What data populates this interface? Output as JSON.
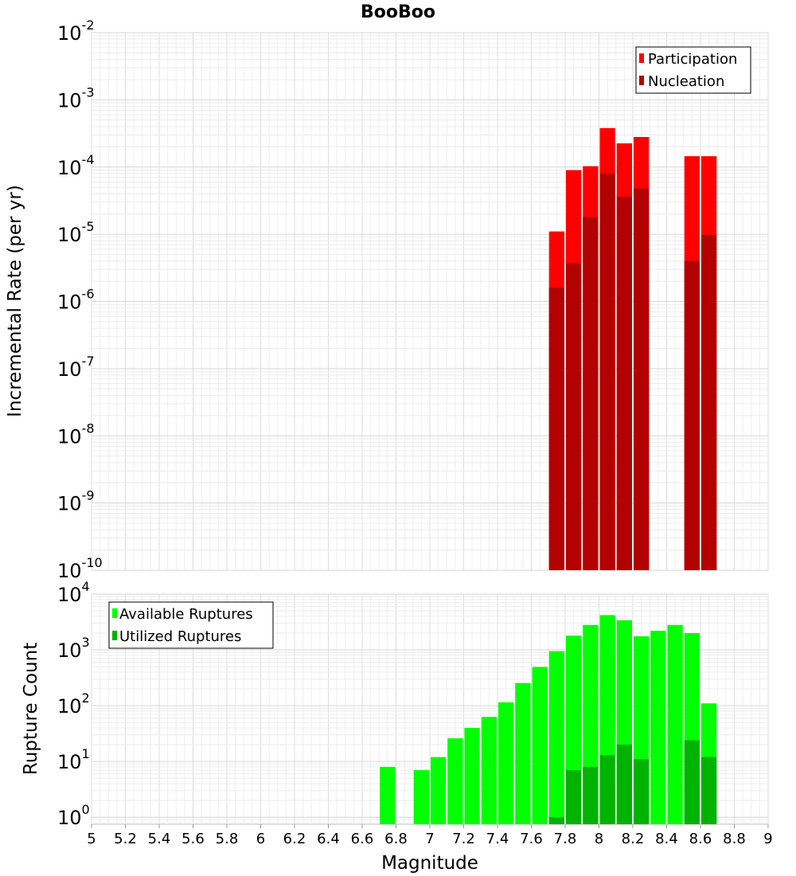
{
  "chart_data": [
    {
      "type": "bar",
      "title": "BooBoo",
      "ylabel": "Incremental Rate (per yr)",
      "xlabel": "",
      "yscale": "log",
      "ylim": [
        1e-10,
        0.01
      ],
      "xlim": [
        5,
        9
      ],
      "bar_width": 0.1,
      "y_tick_labels": [
        {
          "base": "10",
          "exp": "-10"
        },
        {
          "base": "10",
          "exp": "-9"
        },
        {
          "base": "10",
          "exp": "-8"
        },
        {
          "base": "10",
          "exp": "-7"
        },
        {
          "base": "10",
          "exp": "-6"
        },
        {
          "base": "10",
          "exp": "-5"
        },
        {
          "base": "10",
          "exp": "-4"
        },
        {
          "base": "10",
          "exp": "-3"
        },
        {
          "base": "10",
          "exp": "-2"
        }
      ],
      "legend_position": "top-right",
      "grid": true,
      "series": [
        {
          "name": "Participation",
          "color": "#ff0000",
          "x": [
            7.75,
            7.85,
            7.95,
            8.05,
            8.15,
            8.25,
            8.55,
            8.65
          ],
          "values": [
            1.1e-05,
            9e-05,
            0.000103,
            0.00038,
            0.000225,
            0.00028,
            0.000145,
            0.000145
          ]
        },
        {
          "name": "Nucleation",
          "color": "#b30000",
          "x": [
            7.75,
            7.85,
            7.95,
            8.05,
            8.15,
            8.25,
            8.55,
            8.65
          ],
          "values": [
            1.6e-06,
            3.7e-06,
            1.8e-05,
            8e-05,
            3.6e-05,
            4.8e-05,
            4e-06,
            9.8e-06
          ]
        }
      ]
    },
    {
      "type": "bar",
      "title": "",
      "ylabel": "Rupture Count",
      "xlabel": "Magnitude",
      "yscale": "log",
      "ylim": [
        0.75,
        10000
      ],
      "xlim": [
        5,
        9
      ],
      "bar_width": 0.1,
      "x_ticks": [
        "5",
        "5.2",
        "5.4",
        "5.6",
        "5.8",
        "6",
        "6.2",
        "6.4",
        "6.6",
        "6.8",
        "7",
        "7.2",
        "7.4",
        "7.6",
        "7.8",
        "8",
        "8.2",
        "8.4",
        "8.6",
        "8.8",
        "9"
      ],
      "y_tick_labels": [
        {
          "base": "10",
          "exp": "0"
        },
        {
          "base": "10",
          "exp": "1"
        },
        {
          "base": "10",
          "exp": "2"
        },
        {
          "base": "10",
          "exp": "3"
        },
        {
          "base": "10",
          "exp": "4"
        }
      ],
      "legend_position": "top-left",
      "grid": true,
      "series": [
        {
          "name": "Available Ruptures",
          "color": "#00ff00",
          "x": [
            6.75,
            6.95,
            7.05,
            7.15,
            7.25,
            7.35,
            7.45,
            7.55,
            7.65,
            7.75,
            7.85,
            7.95,
            8.05,
            8.15,
            8.25,
            8.35,
            8.45,
            8.55,
            8.65
          ],
          "values": [
            8,
            7,
            12,
            26,
            40,
            63,
            115,
            255,
            495,
            950,
            1800,
            2800,
            4200,
            3400,
            1750,
            2200,
            2800,
            2000,
            110
          ]
        },
        {
          "name": "Utilized Ruptures",
          "color": "#00b300",
          "x": [
            7.75,
            7.85,
            7.95,
            8.05,
            8.15,
            8.25,
            8.55,
            8.65
          ],
          "values": [
            1,
            7,
            8,
            13,
            20,
            11,
            24,
            12
          ]
        }
      ]
    }
  ]
}
